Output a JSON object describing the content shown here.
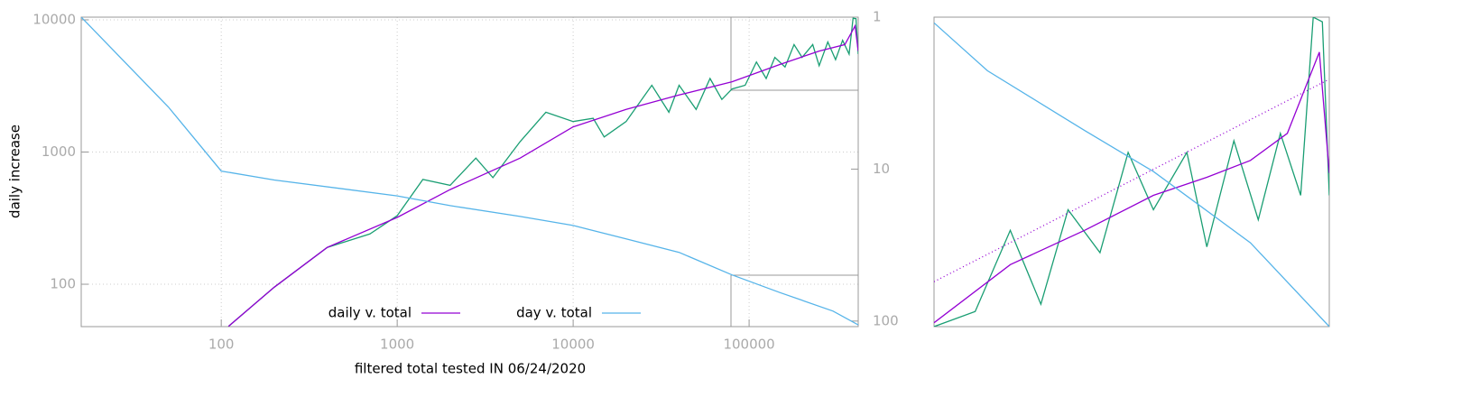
{
  "chart_data": [
    {
      "type": "line",
      "x_label": "filtered total tested IN 06/24/2020",
      "y_label": "daily increase",
      "log_x": true,
      "log_y": true,
      "grid": true,
      "legend": "bottom",
      "xlim": [
        16,
        417000
      ],
      "ylim": [
        47.8,
        10480
      ],
      "y2lim": [
        108.8,
        1
      ],
      "xticks": [
        100,
        1000,
        10000,
        100000
      ],
      "yticks": [
        100,
        1000,
        10000
      ],
      "y2ticks": [
        1,
        10,
        100
      ],
      "series": [
        {
          "color": "#1a9e73",
          "x": [
            110,
            200,
            400,
            700,
            1000,
            1400,
            2000,
            2800,
            3500,
            5000,
            7000,
            10000,
            13000,
            15000,
            20000,
            28000,
            35000,
            40000,
            50000,
            60000,
            70000,
            80000,
            95000,
            110000,
            125000,
            140000,
            160000,
            180000,
            200000,
            230000,
            250000,
            280000,
            310000,
            340000,
            370000,
            390000,
            405000,
            417000
          ],
          "values": [
            48,
            95,
            190,
            240,
            330,
            620,
            560,
            900,
            640,
            1200,
            2000,
            1700,
            1800,
            1300,
            1700,
            3200,
            2000,
            3200,
            2100,
            3600,
            2500,
            3000,
            3200,
            4800,
            3600,
            5200,
            4400,
            6500,
            5200,
            6500,
            4500,
            6800,
            5000,
            7000,
            5500,
            10300,
            10200,
            5500
          ]
        },
        {
          "name": "daily v. total",
          "color": "#9400d3",
          "x": [
            110,
            200,
            400,
            1000,
            2000,
            5000,
            10000,
            20000,
            40000,
            80000,
            150000,
            250000,
            350000,
            400000,
            417000
          ],
          "values": [
            48,
            95,
            190,
            320,
            520,
            900,
            1550,
            2100,
            2700,
            3400,
            4600,
            5800,
            6500,
            9000,
            5800
          ]
        },
        {
          "name": "day v. total",
          "color": "#56b4e9",
          "axis": "y2",
          "x": [
            16,
            50,
            100,
            200,
            1000,
            2000,
            5000,
            10000,
            20000,
            40000,
            80000,
            150000,
            300000,
            417000
          ],
          "values": [
            1,
            3.9,
            10.3,
            11.8,
            15,
            17.4,
            20.5,
            23.5,
            28.8,
            35.3,
            49.7,
            65,
            86,
            106
          ]
        }
      ]
    },
    {
      "type": "line",
      "log_x": true,
      "log_y": true,
      "xlim": [
        80000,
        417000
      ],
      "ylim": [
        3300,
        11000
      ],
      "y2lim": [
        106,
        49
      ],
      "series": [
        {
          "color": "#1a9e73",
          "x": [
            80000,
            95000,
            110000,
            125000,
            140000,
            160000,
            180000,
            200000,
            230000,
            250000,
            280000,
            310000,
            340000,
            370000,
            390000,
            405000,
            417000
          ],
          "values": [
            3300,
            3500,
            4800,
            3600,
            5200,
            4400,
            6500,
            5200,
            6500,
            4500,
            6800,
            5000,
            7000,
            5500,
            11000,
            10800,
            5500
          ]
        },
        {
          "color": "#9400d3",
          "x": [
            80000,
            110000,
            150000,
            200000,
            250000,
            300000,
            350000,
            400000,
            417000
          ],
          "values": [
            3350,
            4200,
            4800,
            5500,
            5900,
            6300,
            7000,
            9600,
            6000
          ]
        },
        {
          "color": "#9400d3",
          "dash": "dotted",
          "x": [
            80000,
            417000
          ],
          "values": [
            3930,
            8640
          ]
        },
        {
          "color": "#56b4e9",
          "axis": "y2",
          "x": [
            80000,
            100000,
            150000,
            200000,
            300000,
            417000
          ],
          "values": [
            49.7,
            56,
            65,
            72,
            86,
            106
          ]
        }
      ]
    }
  ]
}
